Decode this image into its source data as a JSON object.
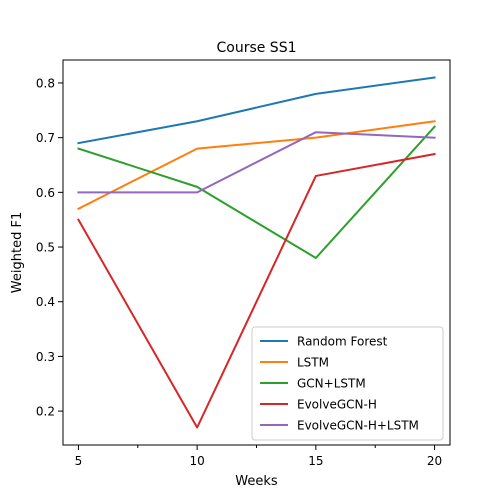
{
  "chart_data": {
    "type": "line",
    "title": "Course SS1",
    "xlabel": "Weeks",
    "ylabel": "Weighted F1",
    "x": [
      5,
      10,
      15,
      20
    ],
    "xticks": [
      5,
      10,
      15,
      20
    ],
    "xlim": [
      4.35,
      20.65
    ],
    "yticks": [
      0.2,
      0.3,
      0.4,
      0.5,
      0.6,
      0.7,
      0.8
    ],
    "ylim": [
      0.138,
      0.842
    ],
    "grid": false,
    "legend_position": "lower-right",
    "series": [
      {
        "name": "Random Forest",
        "color": "#1f77b4",
        "values": [
          0.69,
          0.73,
          0.78,
          0.81
        ]
      },
      {
        "name": "LSTM",
        "color": "#ff7f0e",
        "values": [
          0.57,
          0.68,
          0.7,
          0.73
        ]
      },
      {
        "name": "GCN+LSTM",
        "color": "#2ca02c",
        "values": [
          0.68,
          0.61,
          0.48,
          0.72
        ]
      },
      {
        "name": "EvolveGCN-H",
        "color": "#d62728",
        "values": [
          0.55,
          0.17,
          0.63,
          0.67
        ]
      },
      {
        "name": "EvolveGCN-H+LSTM",
        "color": "#9467bd",
        "values": [
          0.6,
          0.6,
          0.71,
          0.7
        ]
      }
    ]
  }
}
